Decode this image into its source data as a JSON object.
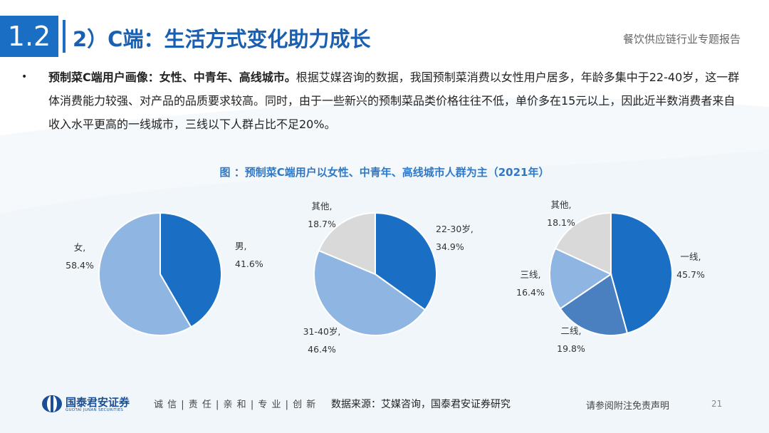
{
  "header": {
    "section_number": "1.2",
    "section_title": "2）C端：生活方式变化助力成长",
    "report_name": "餐饮供应链行业专题报告"
  },
  "bullet": {
    "marker": "•",
    "bold_lead": "预制菜C端用户画像：女性、中青年、高线城市。",
    "text": "根据艾媒咨询的数据，我国预制菜消费以女性用户居多，年龄多集中于22-40岁，这一群体消费能力较强、对产品的品质要求较高。同时，由于一些新兴的预制菜品类价格往往不低，单价多在15元以上，因此近半数消费者来自收入水平更高的一线城市，三线以下人群占比不足20%。"
  },
  "figure": {
    "title": "图 ：预制菜C端用户以女性、中青年、高线城市人群为主（2021年）"
  },
  "chart_data": [
    {
      "type": "pie",
      "title": "",
      "slices": [
        {
          "label": "男",
          "value": 41.6,
          "value_label": "41.6%",
          "color": "#1a6fc4"
        },
        {
          "label": "女",
          "value": 58.4,
          "value_label": "58.4%",
          "color": "#8fb5e3"
        }
      ]
    },
    {
      "type": "pie",
      "title": "",
      "slices": [
        {
          "label": "22-30岁",
          "value": 34.9,
          "value_label": "34.9%",
          "color": "#1a6fc4"
        },
        {
          "label": "31-40岁",
          "value": 46.4,
          "value_label": "46.4%",
          "color": "#8fb5e3"
        },
        {
          "label": "其他",
          "value": 18.7,
          "value_label": "18.7%",
          "color": "#d9d9d9"
        }
      ]
    },
    {
      "type": "pie",
      "title": "",
      "slices": [
        {
          "label": "一线",
          "value": 45.7,
          "value_label": "45.7%",
          "color": "#1a6fc4"
        },
        {
          "label": "二线",
          "value": 19.8,
          "value_label": "19.8%",
          "color": "#4a80c0"
        },
        {
          "label": "三线",
          "value": 16.4,
          "value_label": "16.4%",
          "color": "#8fb5e3"
        },
        {
          "label": "其他",
          "value": 18.1,
          "value_label": "18.1%",
          "color": "#d9d9d9"
        }
      ]
    }
  ],
  "footer": {
    "logo_cn": "国泰君安证券",
    "logo_en": "GUOTAI JUNAN SECURITIES",
    "slogan": "诚 信 | 责 任 | 亲 和 | 专 业 | 创 新",
    "source": "数据来源：艾媒咨询，国泰君安证券研究",
    "disclaimer": "请参阅附注免责声明",
    "page_number": "21"
  },
  "colors": {
    "accent": "#1a6fc4",
    "title_text": "#1a5fb0",
    "figure_title": "#2f78c8"
  }
}
